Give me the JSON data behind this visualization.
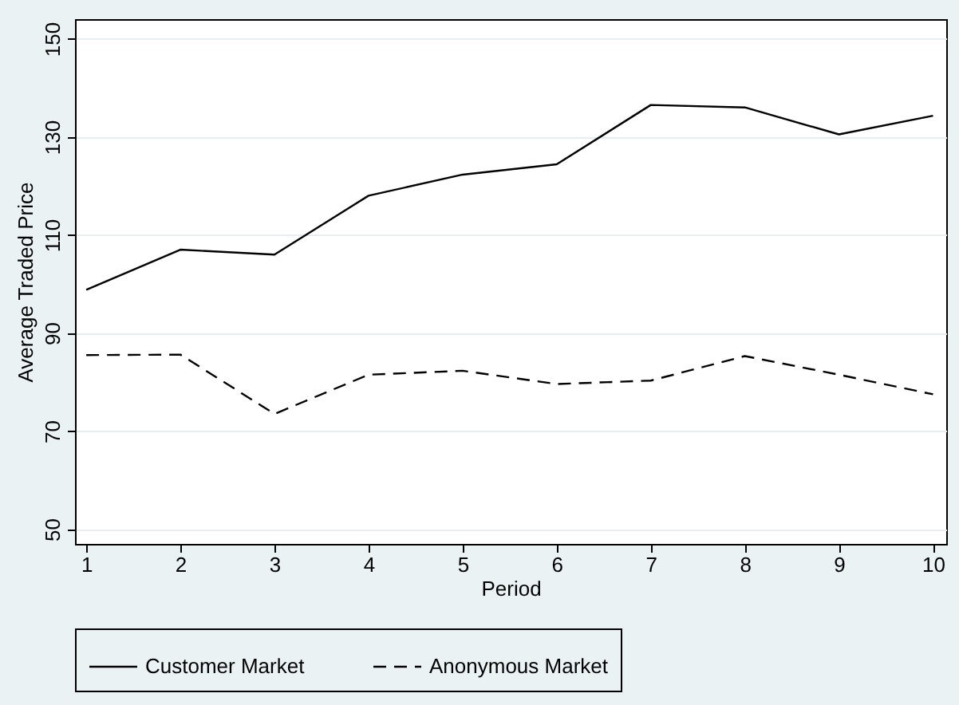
{
  "chart_data": {
    "type": "line",
    "xlabel": "Period",
    "ylabel": "Average Traded Price",
    "x": [
      1,
      2,
      3,
      4,
      5,
      6,
      7,
      8,
      9,
      10
    ],
    "series": [
      {
        "name": "Customer Market",
        "color": "#000000",
        "line_style": "solid",
        "values": [
          98.8,
          107,
          106,
          118,
          122.3,
          124.4,
          136.5,
          136,
          130.5,
          134.3
        ]
      },
      {
        "name": "Anonymous Market",
        "color": "#000000",
        "line_style": "dashed",
        "values": [
          85.5,
          85.6,
          73.5,
          81.5,
          82.3,
          79.6,
          80.3,
          85.3,
          81.5,
          77.5
        ]
      }
    ],
    "xlim": [
      0.88,
      10.14
    ],
    "xticks": [
      1,
      2,
      3,
      4,
      5,
      6,
      7,
      8,
      9,
      10
    ],
    "ylim": [
      47,
      154
    ],
    "yticks": [
      50,
      70,
      90,
      110,
      130,
      150
    ],
    "grid": "y",
    "legend": "bottom",
    "marker": "none"
  }
}
